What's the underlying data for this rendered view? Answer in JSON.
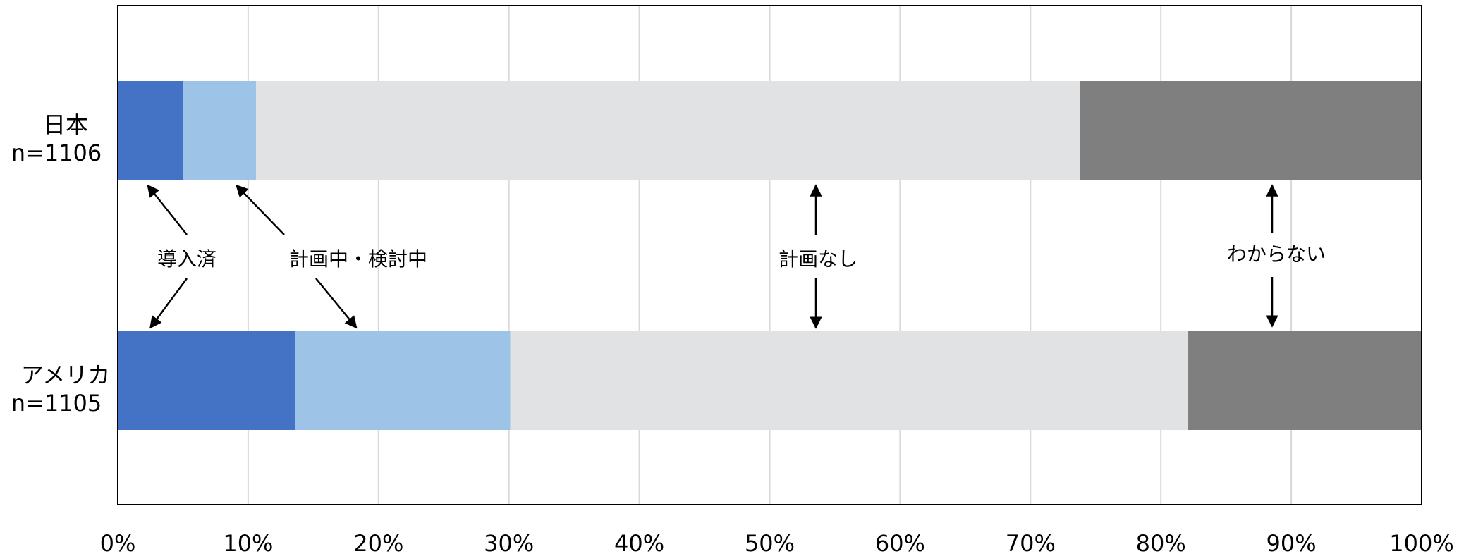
{
  "chart_data": {
    "type": "bar",
    "orientation": "horizontal",
    "stacked": true,
    "normalized": true,
    "categories": [
      {
        "name": "日本",
        "sample": "n=1106"
      },
      {
        "name": "アメリカ",
        "sample": "n=1105"
      }
    ],
    "series": [
      {
        "name": "導入済",
        "color": "#4472c4",
        "values": [
          5.0,
          13.6
        ]
      },
      {
        "name": "計画中・検討中",
        "color": "#9dc3e6",
        "values": [
          5.6,
          16.5
        ]
      },
      {
        "name": "計画なし",
        "color": "#e1e2e4",
        "values": [
          63.2,
          52.0
        ]
      },
      {
        "name": "わからない",
        "color": "#7f7f7f",
        "values": [
          26.2,
          17.9
        ]
      }
    ],
    "xlim": [
      0,
      100
    ],
    "x_ticks": [
      "0%",
      "10%",
      "20%",
      "30%",
      "40%",
      "50%",
      "60%",
      "70%",
      "80%",
      "90%",
      "100%"
    ],
    "grid": "vertical",
    "legend": "inline annotations with arrows"
  }
}
